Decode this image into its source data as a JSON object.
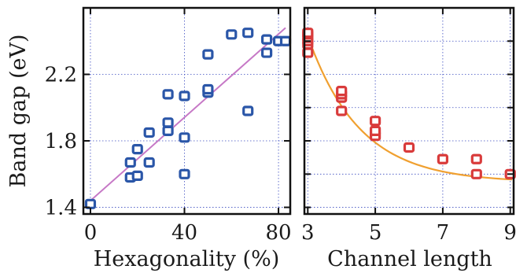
{
  "chart_data": [
    {
      "type": "scatter",
      "xlabel": "Hexagonality (%)",
      "ylabel": "Band gap (eV)",
      "xlim": [
        -3,
        85
      ],
      "ylim": [
        1.36,
        2.6
      ],
      "xticks": [
        0,
        40,
        80
      ],
      "xtick_labels": [
        "0",
        "40",
        "80"
      ],
      "yticks": [
        1.4,
        1.8,
        2.2
      ],
      "ytick_labels": [
        "1.4",
        "1.8",
        "2.2"
      ],
      "grid": true,
      "marker_color": "#2a56a8",
      "points": [
        [
          0,
          1.42
        ],
        [
          17,
          1.67
        ],
        [
          17,
          1.58
        ],
        [
          20,
          1.59
        ],
        [
          20,
          1.75
        ],
        [
          25,
          1.67
        ],
        [
          25,
          1.85
        ],
        [
          33,
          1.86
        ],
        [
          33,
          1.91
        ],
        [
          33,
          2.08
        ],
        [
          40,
          1.82
        ],
        [
          40,
          2.07
        ],
        [
          40,
          1.6
        ],
        [
          50,
          2.09
        ],
        [
          50,
          2.11
        ],
        [
          50,
          2.32
        ],
        [
          60,
          2.44
        ],
        [
          67,
          1.98
        ],
        [
          67,
          2.45
        ],
        [
          75,
          2.33
        ],
        [
          75,
          2.41
        ],
        [
          80,
          2.4
        ],
        [
          83,
          2.4
        ]
      ],
      "fit_line": {
        "color": "#c678c6",
        "x": [
          0,
          83
        ],
        "y": [
          1.44,
          2.48
        ]
      }
    },
    {
      "type": "scatter",
      "xlabel": "Channel length",
      "ylabel": "",
      "xlim": [
        2.9,
        9.1
      ],
      "ylim": [
        1.36,
        2.6
      ],
      "xticks": [
        3,
        5,
        7,
        9
      ],
      "xtick_labels": [
        "3",
        "5",
        "7",
        "9"
      ],
      "yticks": [
        1.4,
        1.6,
        1.8,
        2.0,
        2.2,
        2.4
      ],
      "grid": true,
      "marker_color": "#d93b3b",
      "points": [
        [
          3,
          2.33
        ],
        [
          3,
          2.38
        ],
        [
          3,
          2.4
        ],
        [
          3,
          2.42
        ],
        [
          3,
          2.44
        ],
        [
          3,
          2.45
        ],
        [
          4,
          1.98
        ],
        [
          4,
          2.06
        ],
        [
          4,
          2.08
        ],
        [
          4,
          2.1
        ],
        [
          5,
          1.83
        ],
        [
          5,
          1.86
        ],
        [
          5,
          1.92
        ],
        [
          6,
          1.76
        ],
        [
          7,
          1.69
        ],
        [
          8,
          1.69
        ],
        [
          8,
          1.6
        ],
        [
          9,
          1.6
        ]
      ],
      "fit_curve": {
        "color": "#f0a030",
        "a": 1.55,
        "b": 0.88,
        "k": 0.65,
        "x0": 3,
        "x1": 9.05
      }
    }
  ]
}
